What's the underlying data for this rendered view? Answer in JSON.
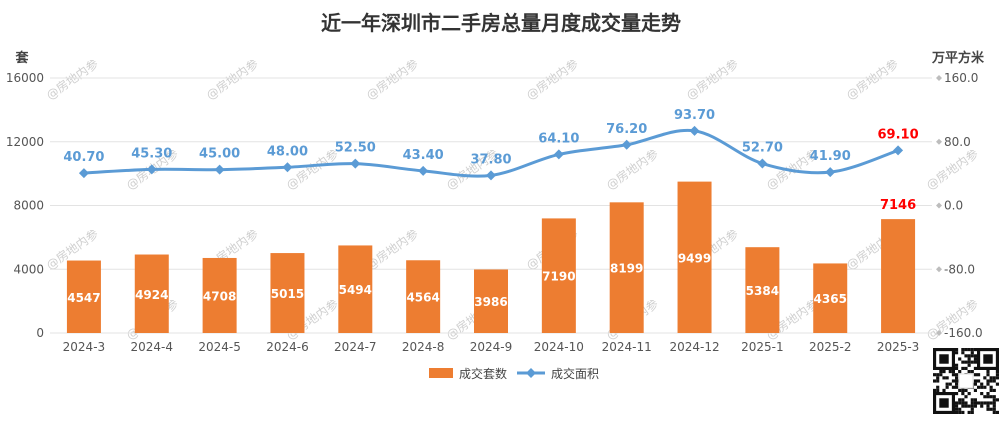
{
  "colors": {
    "bar": "#ED7D31",
    "line": "#5B9BD5",
    "highlight": "#FF0000",
    "grid": "#E3E3E3",
    "axis_text": "#555555"
  },
  "watermark": "@房地内参",
  "chart_data": {
    "type": "bar+line",
    "title": "近一年深圳市二手房总量月度成交量走势",
    "y_left_label": "套",
    "y_right_label": "万平方米",
    "y_left_ticks": [
      "16000",
      "12000",
      "8000",
      "4000",
      "0"
    ],
    "y_right_ticks": [
      "160.0",
      "80.0",
      "0.0",
      "-80.0",
      "-160.0"
    ],
    "y_left_range": [
      0,
      16000
    ],
    "y_right_range": [
      -160,
      160
    ],
    "grid": true,
    "legend_position": "bottom",
    "categories": [
      "2024-3",
      "2024-4",
      "2024-5",
      "2024-6",
      "2024-7",
      "2024-8",
      "2024-9",
      "2024-10",
      "2024-11",
      "2024-12",
      "2025-1",
      "2025-2",
      "2025-3"
    ],
    "series": [
      {
        "name": "成交套数",
        "type": "bar",
        "axis": "left",
        "values": [
          4547,
          4924,
          4708,
          5015,
          5494,
          4564,
          3986,
          7190,
          8199,
          9499,
          5384,
          4365,
          7146
        ],
        "labels": [
          "4547",
          "4924",
          "4708",
          "5015",
          "5494",
          "4564",
          "3986",
          "7190",
          "8199",
          "9499",
          "5384",
          "4365",
          "7146"
        ]
      },
      {
        "name": "成交面积",
        "type": "line",
        "axis": "right",
        "values": [
          40.7,
          45.3,
          45.0,
          48.0,
          52.5,
          43.4,
          37.8,
          64.1,
          76.2,
          93.7,
          52.7,
          41.9,
          69.1
        ],
        "labels": [
          "40.70",
          "45.30",
          "45.00",
          "48.00",
          "52.50",
          "43.40",
          "37.80",
          "64.10",
          "76.20",
          "93.70",
          "52.70",
          "41.90",
          "69.10"
        ]
      }
    ]
  }
}
